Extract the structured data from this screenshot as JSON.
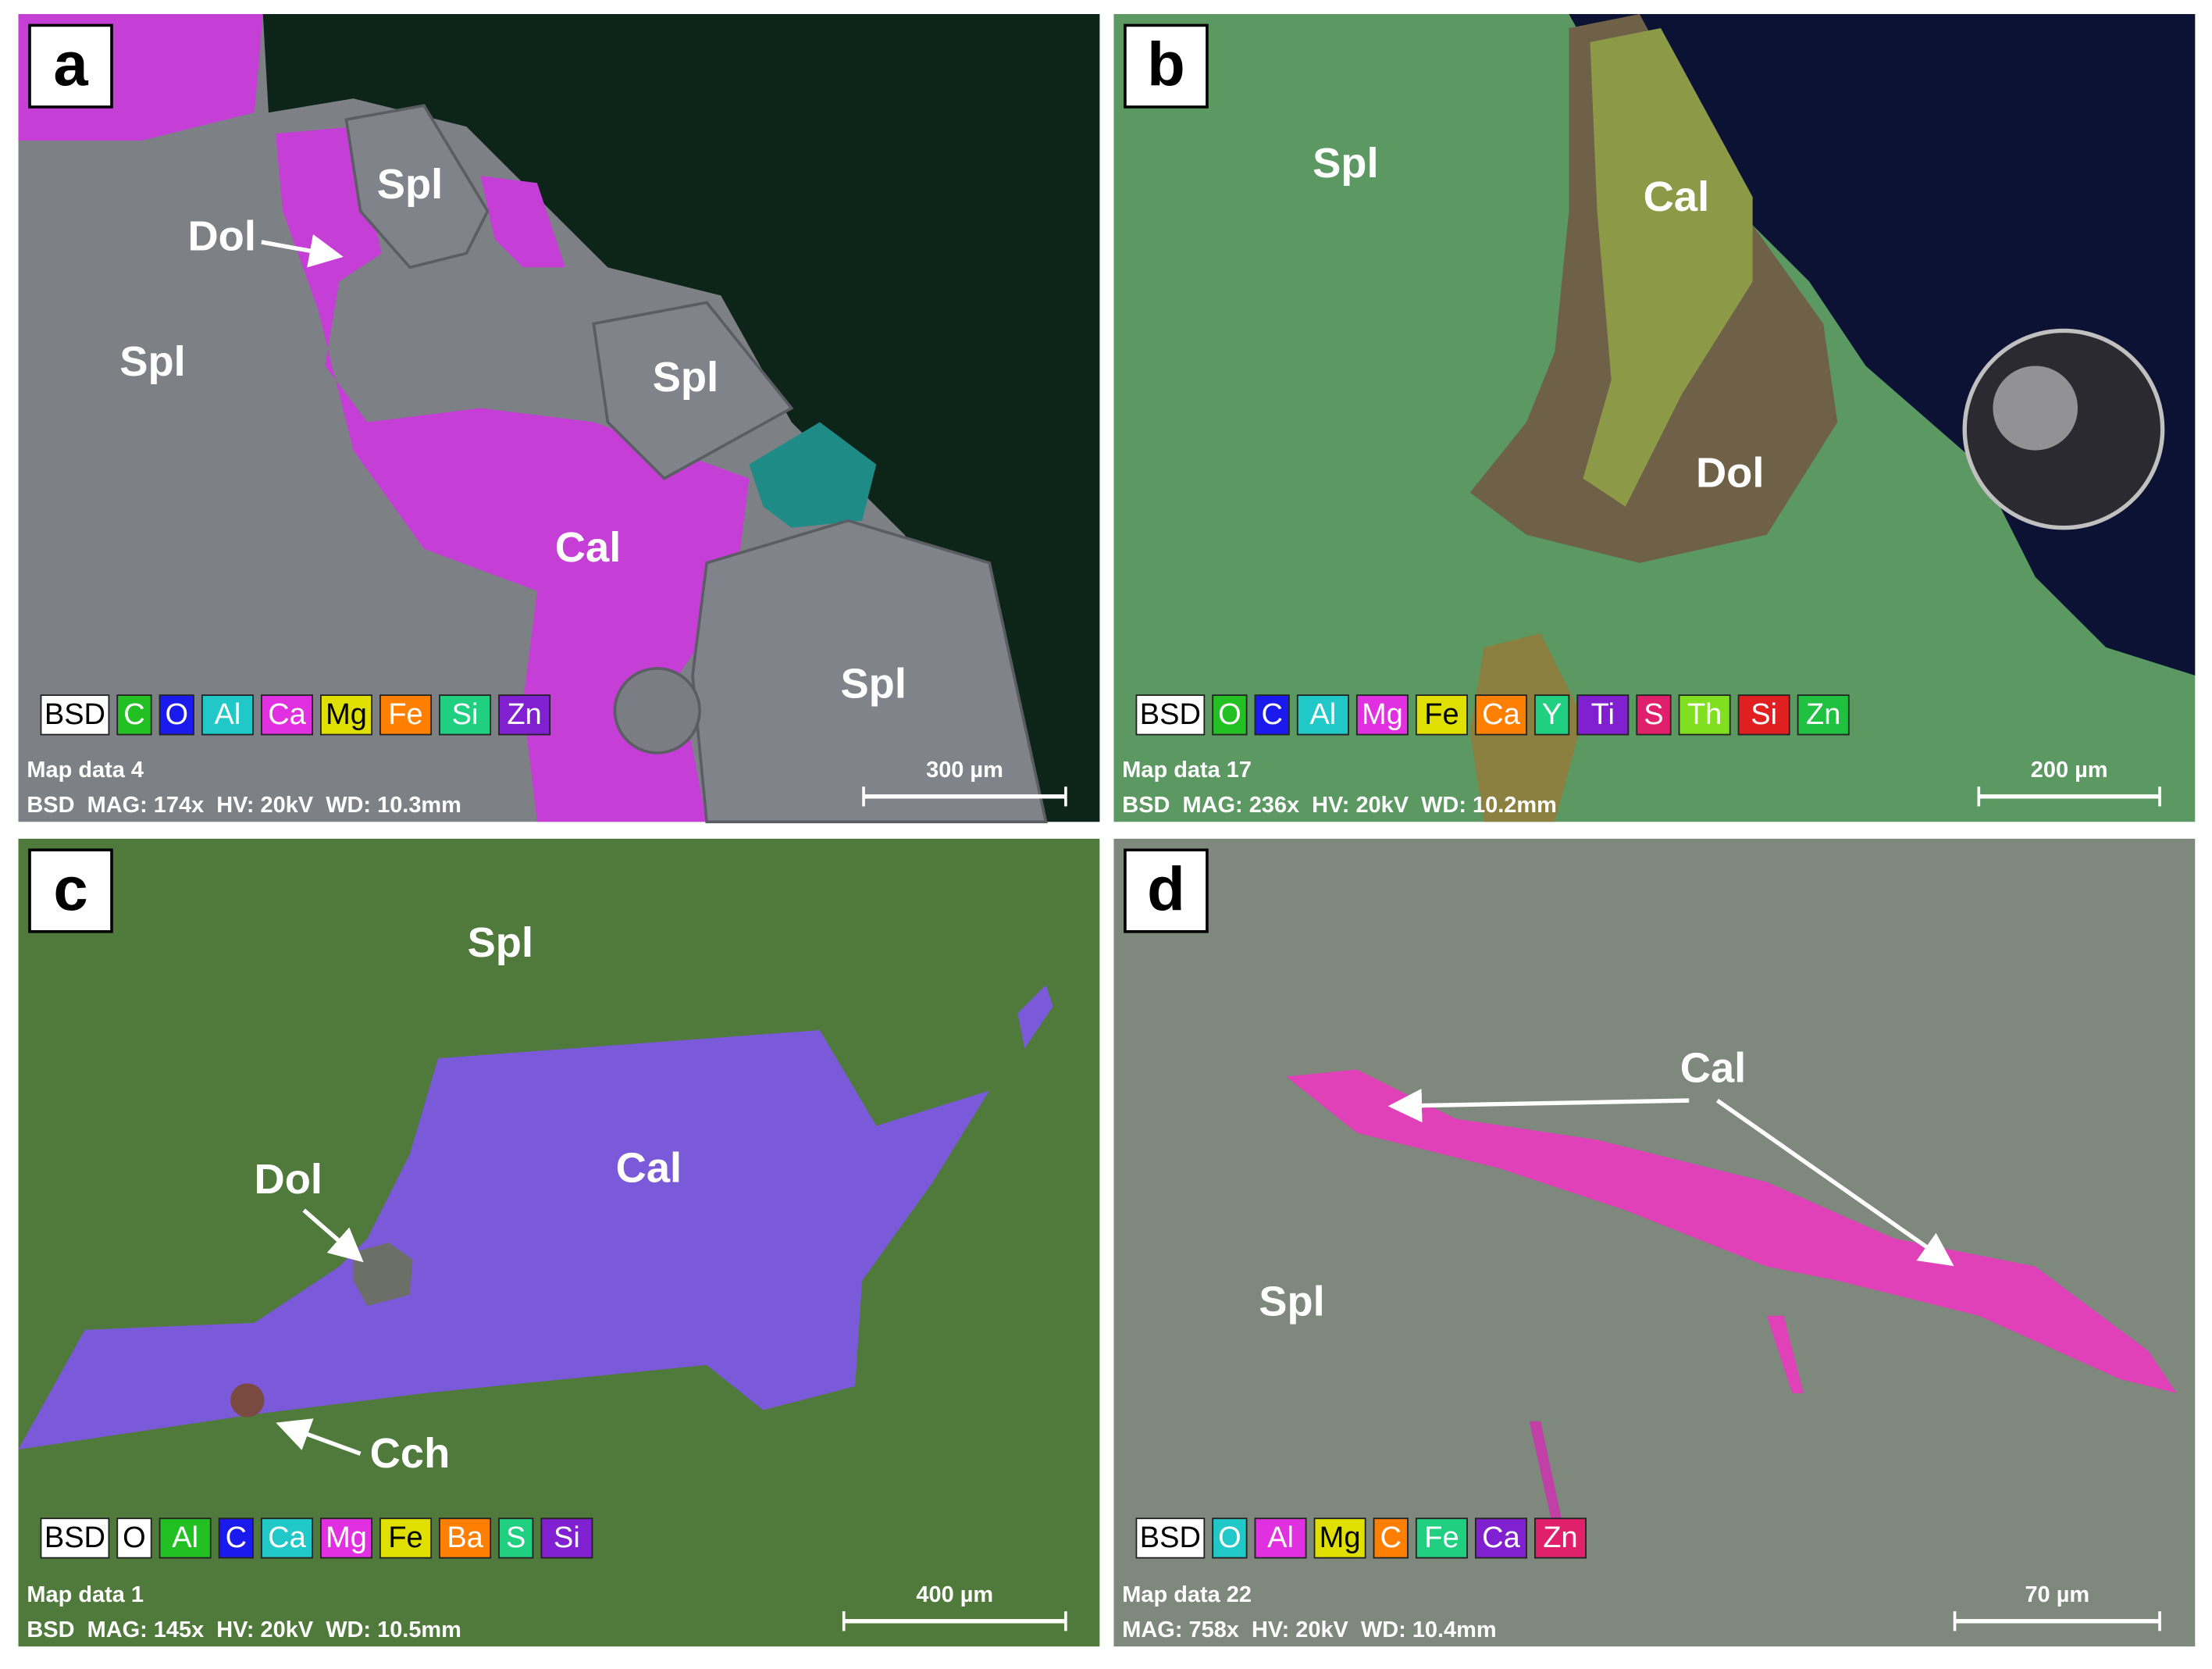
{
  "panels": [
    {
      "letter": "a",
      "labels": [
        "Spl",
        "Dol",
        "Spl",
        "Spl",
        "Cal",
        "Spl"
      ],
      "legend": [
        {
          "text": "BSD",
          "color": "#ffffff"
        },
        {
          "text": "C",
          "color": "#22c022"
        },
        {
          "text": "O",
          "color": "#1a1aee"
        },
        {
          "text": "Al",
          "color": "#20c8c8"
        },
        {
          "text": "Ca",
          "color": "#e030e0"
        },
        {
          "text": "Mg",
          "color": "#e0e000"
        },
        {
          "text": "Fe",
          "color": "#ff8000"
        },
        {
          "text": "Si",
          "color": "#20d080"
        },
        {
          "text": "Zn",
          "color": "#8020d0"
        }
      ],
      "map": "Map data 4",
      "info": "BSD  MAG: 174x  HV: 20kV  WD: 10.3mm",
      "scale": "300 µm"
    },
    {
      "letter": "b",
      "labels": [
        "Spl",
        "Cal",
        "Dol"
      ],
      "legend": [
        {
          "text": "BSD",
          "color": "#ffffff"
        },
        {
          "text": "O",
          "color": "#22c022"
        },
        {
          "text": "C",
          "color": "#1a1aee"
        },
        {
          "text": "Al",
          "color": "#20c8c8"
        },
        {
          "text": "Mg",
          "color": "#e030e0"
        },
        {
          "text": "Fe",
          "color": "#e0e000"
        },
        {
          "text": "Ca",
          "color": "#ff8000"
        },
        {
          "text": "Y",
          "color": "#20d080"
        },
        {
          "text": "Ti",
          "color": "#8020d0"
        },
        {
          "text": "S",
          "color": "#e0206a"
        },
        {
          "text": "Th",
          "color": "#80e020"
        },
        {
          "text": "Si",
          "color": "#e02020"
        },
        {
          "text": "Zn",
          "color": "#20c040"
        }
      ],
      "map": "Map data 17",
      "info": "BSD  MAG: 236x  HV: 20kV  WD: 10.2mm",
      "scale": "200 µm"
    },
    {
      "letter": "c",
      "labels": [
        "Spl",
        "Cal",
        "Dol",
        "Cch"
      ],
      "legend": [
        {
          "text": "BSD",
          "color": "#ffffff"
        },
        {
          "text": "O",
          "color": "#ffffff"
        },
        {
          "text": "Al",
          "color": "#22c022"
        },
        {
          "text": "C",
          "color": "#1a1aee"
        },
        {
          "text": "Ca",
          "color": "#20c8c8"
        },
        {
          "text": "Mg",
          "color": "#e030e0"
        },
        {
          "text": "Fe",
          "color": "#e0e000"
        },
        {
          "text": "Ba",
          "color": "#ff8000"
        },
        {
          "text": "S",
          "color": "#20d080"
        },
        {
          "text": "Si",
          "color": "#8020d0"
        }
      ],
      "map": "Map data 1",
      "info": "BSD  MAG: 145x  HV: 20kV  WD: 10.5mm",
      "scale": "400 µm"
    },
    {
      "letter": "d",
      "labels": [
        "Cal",
        "Spl"
      ],
      "legend": [
        {
          "text": "BSD",
          "color": "#ffffff"
        },
        {
          "text": "O",
          "color": "#20c8c8"
        },
        {
          "text": "Al",
          "color": "#e030e0"
        },
        {
          "text": "Mg",
          "color": "#e0e000"
        },
        {
          "text": "C",
          "color": "#ff8000"
        },
        {
          "text": "Fe",
          "color": "#20d080"
        },
        {
          "text": "Ca",
          "color": "#8020d0"
        },
        {
          "text": "Zn",
          "color": "#e0206a"
        }
      ],
      "map": "Map data 22",
      "info": "MAG: 758x  HV: 20kV  WD: 10.4mm",
      "scale": "70 µm"
    }
  ]
}
